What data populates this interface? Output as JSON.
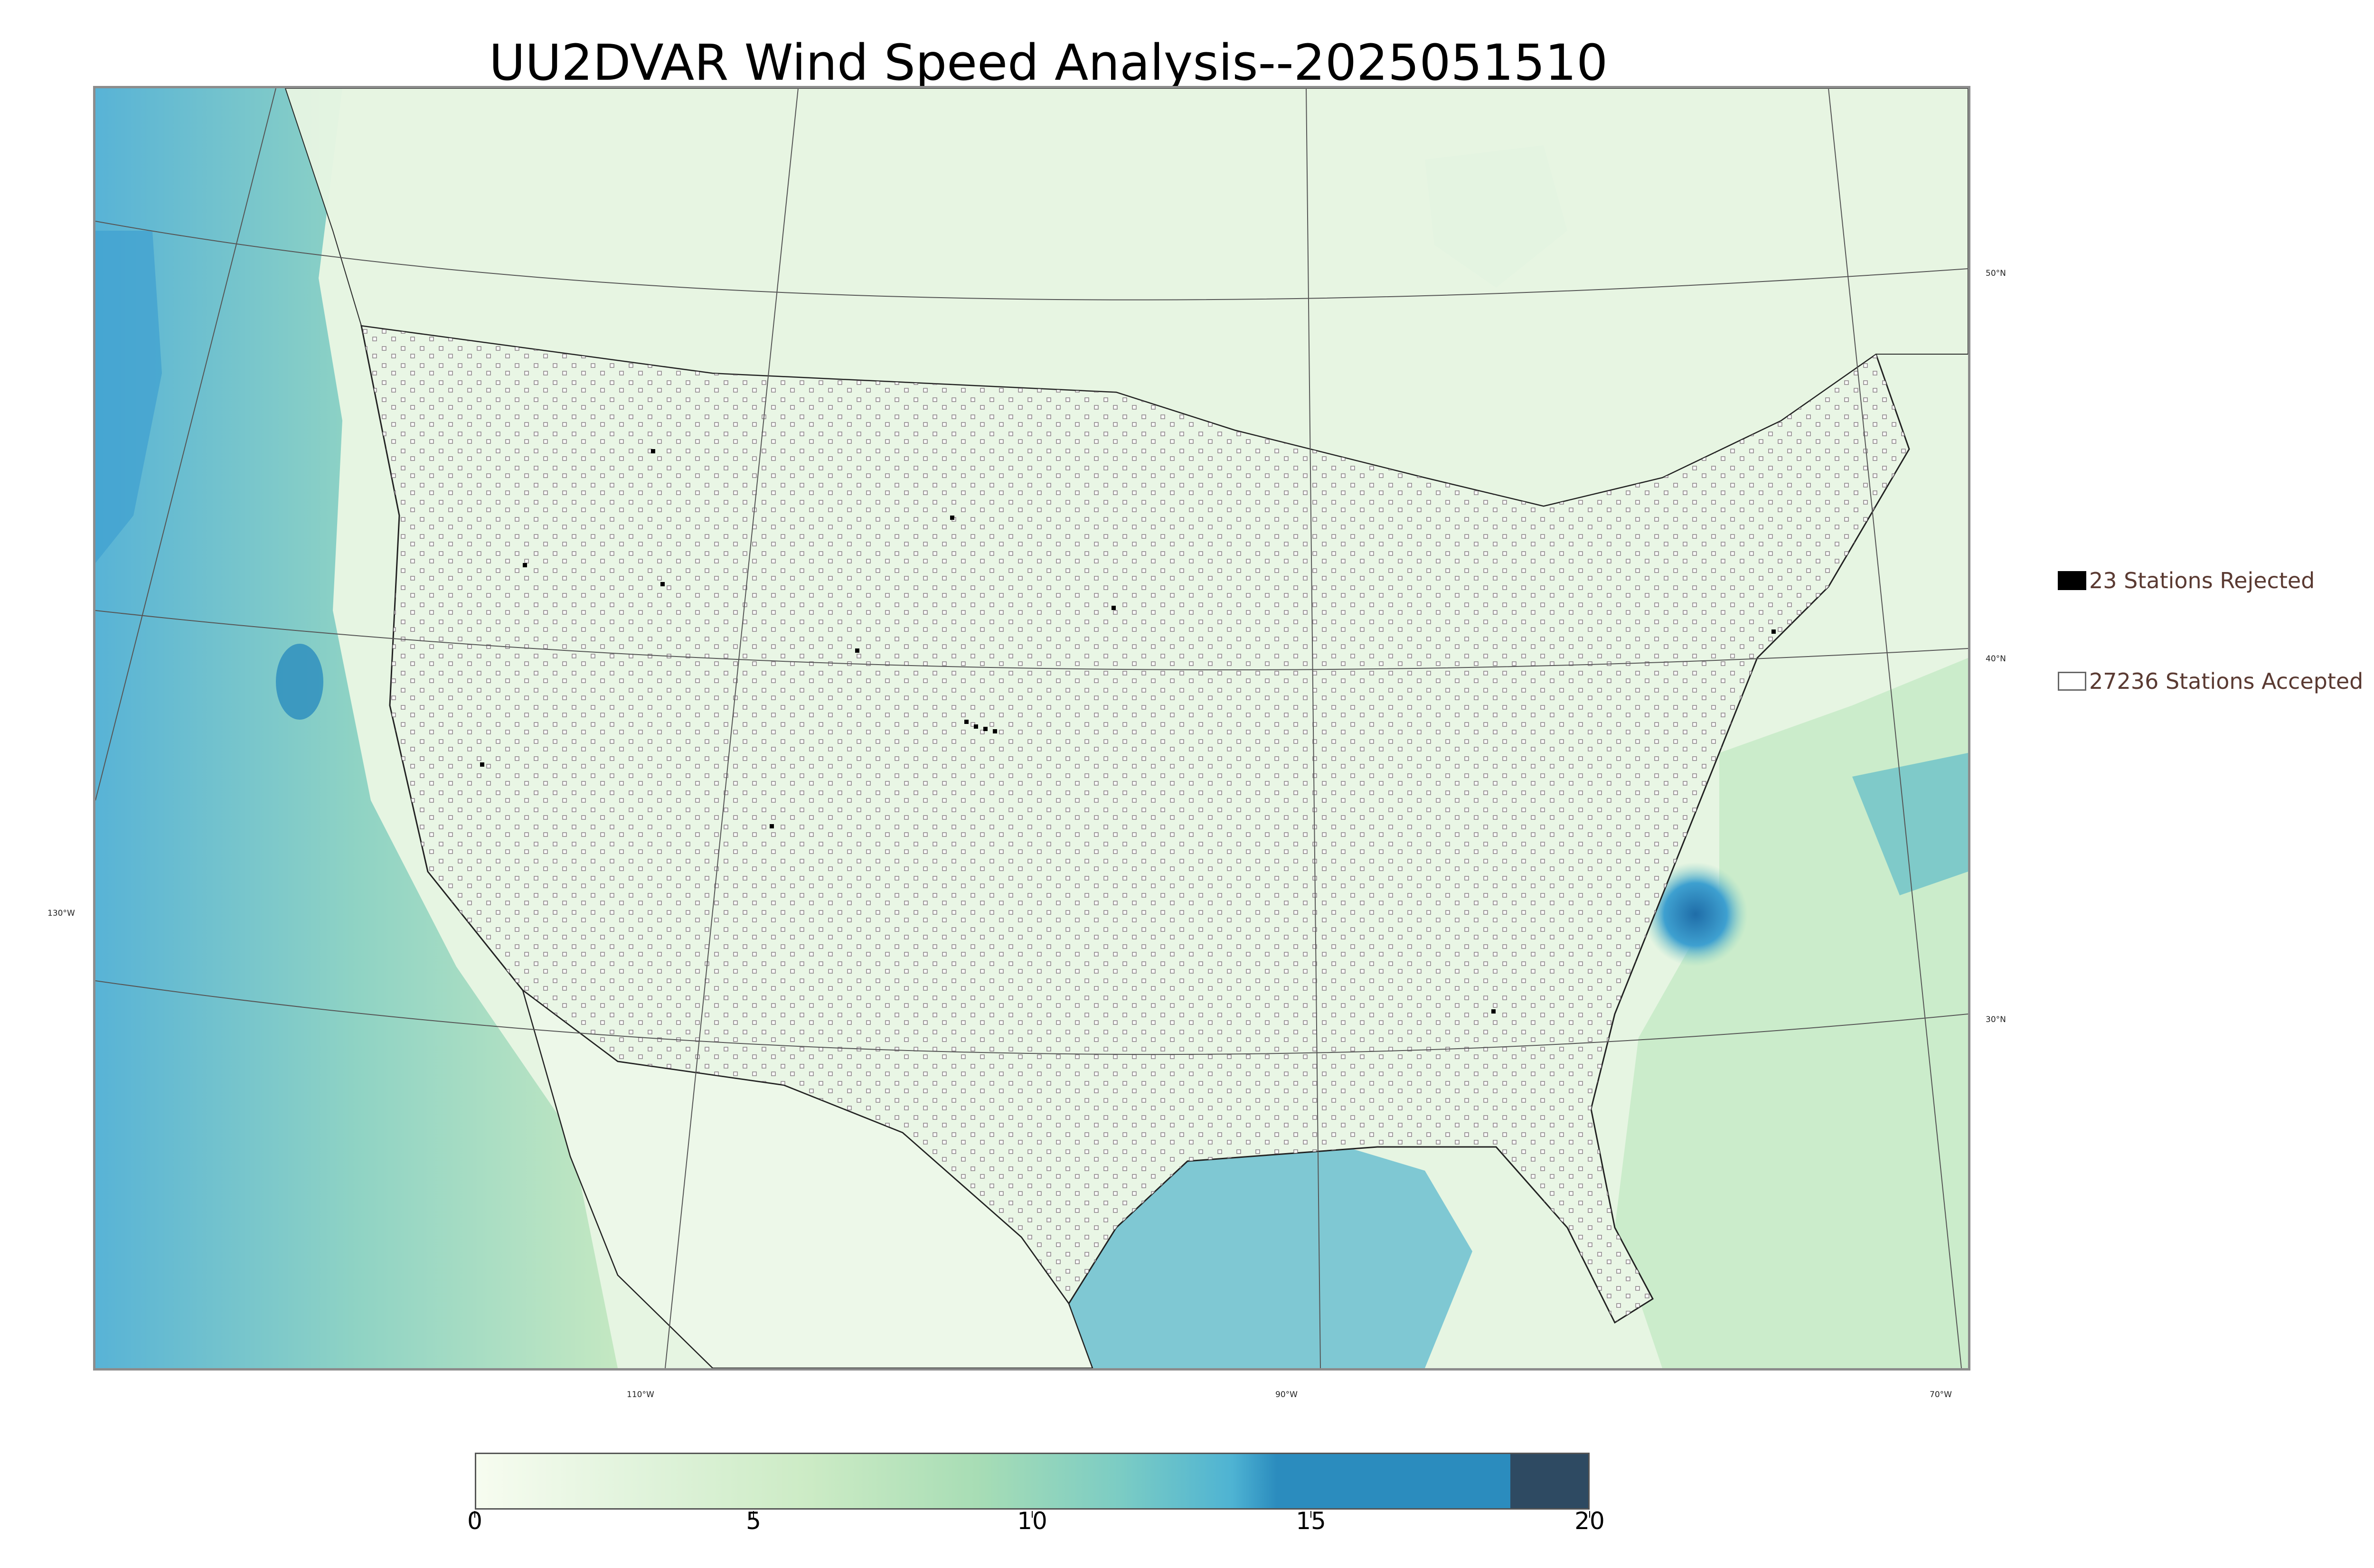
{
  "title": "UU2DVAR Wind Speed Analysis--2025051510",
  "legend": {
    "rejected_label": "23 Stations Rejected",
    "accepted_label": "27236 Stations Accepted"
  },
  "lat_labels": {
    "lat50": "50°N",
    "lat40": "40°N",
    "lat30": "30°N"
  },
  "lon_labels": {
    "lon130": "130°W",
    "lon110": "110°W",
    "lon90": "90°W",
    "lon70": "70°W"
  },
  "colorbar": {
    "min": 0,
    "max": 20,
    "tick_labels": [
      "0",
      "5",
      "10",
      "15",
      "20"
    ],
    "colors": [
      "#f7fcf0",
      "#e0f3db",
      "#ccebc5",
      "#a8ddb5",
      "#7bccc4",
      "#4eb3d3",
      "#2b8cbe",
      "#2e4a62"
    ]
  },
  "colors": {
    "land": "#eef8ea",
    "ocean": "#6cc2c8",
    "accepted_marker": "#ffffff",
    "rejected_marker": "#000000"
  }
}
